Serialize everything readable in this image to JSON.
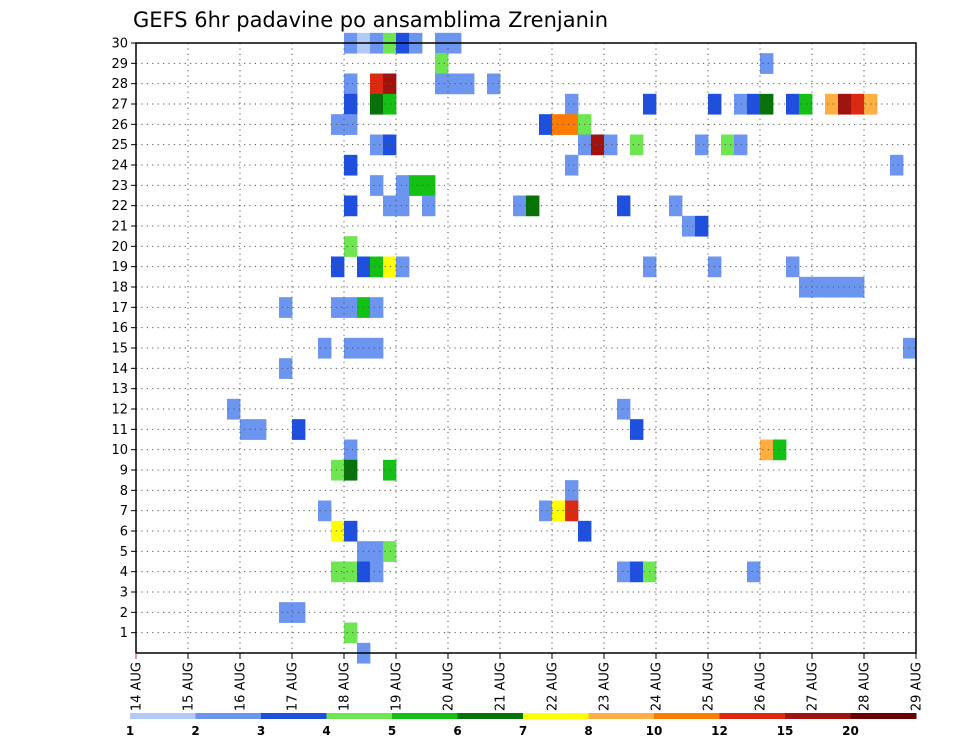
{
  "chart_data": {
    "type": "heatmap",
    "title": "GEFS 6hr padavine po ansamblima Zrenjanin",
    "xlabel": "",
    "ylabel": "",
    "x_ticks": [
      "14 AUG",
      "15 AUG",
      "16 AUG",
      "17 AUG",
      "18 AUG",
      "19 AUG",
      "20 AUG",
      "21 AUG",
      "22 AUG",
      "23 AUG",
      "24 AUG",
      "25 AUG",
      "26 AUG",
      "27 AUG",
      "28 AUG",
      "29 AUG"
    ],
    "xlim": [
      "14 AUG 00Z",
      "29 AUG 00Z"
    ],
    "time_step_hours": 6,
    "y_ticks": [
      "1",
      "2",
      "3",
      "4",
      "5",
      "6",
      "7",
      "8",
      "9",
      "10",
      "11",
      "12",
      "13",
      "14",
      "15",
      "16",
      "17",
      "18",
      "19",
      "20",
      "21",
      "22",
      "23",
      "24",
      "25",
      "26",
      "27",
      "28",
      "29",
      "30"
    ],
    "ylim": [
      0,
      30
    ],
    "grid": true,
    "colorbar": {
      "tick_labels": [
        "1",
        "2",
        "3",
        "4",
        "5",
        "6",
        "7",
        "8",
        "10",
        "12",
        "15",
        "20"
      ],
      "colors": [
        "#b3c9f7",
        "#6b95ef",
        "#1f4fde",
        "#6ee651",
        "#13c013",
        "#077207",
        "#ffff00",
        "#ffae42",
        "#ff7a00",
        "#dc2a12",
        "#a0120e",
        "#6b0000"
      ]
    },
    "cells": [
      {
        "m": 30,
        "t": [
          "18 AUG 00Z",
          "18 AUG 06Z",
          "18 AUG 12Z",
          "18 AUG 18Z",
          "19 AUG 00Z",
          "19 AUG 06Z",
          "19 AUG 18Z",
          "20 AUG 00Z"
        ],
        "c": [
          1,
          0,
          1,
          3,
          2,
          1,
          1,
          1
        ]
      },
      {
        "m": 29,
        "t": [
          "19 AUG 18Z",
          "26 AUG 00Z"
        ],
        "c": [
          3,
          1
        ]
      },
      {
        "m": 28,
        "t": [
          "18 AUG 00Z",
          "18 AUG 12Z",
          "18 AUG 18Z",
          "19 AUG 18Z",
          "20 AUG 00Z",
          "20 AUG 06Z",
          "20 AUG 18Z"
        ],
        "c": [
          1,
          9,
          10,
          1,
          1,
          1,
          1
        ]
      },
      {
        "m": 27,
        "t": [
          "18 AUG 00Z",
          "18 AUG 12Z",
          "18 AUG 18Z",
          "22 AUG 06Z",
          "23 AUG 18Z",
          "25 AUG 00Z",
          "25 AUG 12Z",
          "25 AUG 18Z",
          "26 AUG 00Z",
          "26 AUG 12Z",
          "26 AUG 18Z",
          "27 AUG 06Z",
          "27 AUG 12Z",
          "27 AUG 18Z",
          "28 AUG 00Z"
        ],
        "c": [
          2,
          5,
          4,
          1,
          2,
          2,
          1,
          2,
          5,
          2,
          4,
          7,
          10,
          9,
          7
        ]
      },
      {
        "m": 26,
        "t": [
          "17 AUG 18Z",
          "18 AUG 00Z",
          "21 AUG 18Z",
          "22 AUG 00Z",
          "22 AUG 06Z",
          "22 AUG 12Z"
        ],
        "c": [
          1,
          1,
          2,
          8,
          8,
          3
        ]
      },
      {
        "m": 25,
        "t": [
          "18 AUG 12Z",
          "18 AUG 18Z",
          "22 AUG 12Z",
          "22 AUG 18Z",
          "23 AUG 00Z",
          "23 AUG 12Z",
          "24 AUG 18Z",
          "25 AUG 06Z",
          "25 AUG 12Z"
        ],
        "c": [
          1,
          2,
          1,
          10,
          1,
          3,
          1,
          3,
          1
        ]
      },
      {
        "m": 24,
        "t": [
          "18 AUG 00Z",
          "22 AUG 06Z",
          "28 AUG 12Z"
        ],
        "c": [
          2,
          1,
          1
        ]
      },
      {
        "m": 23,
        "t": [
          "18 AUG 12Z",
          "19 AUG 00Z",
          "19 AUG 06Z",
          "19 AUG 12Z"
        ],
        "c": [
          1,
          1,
          4,
          4
        ]
      },
      {
        "m": 22,
        "t": [
          "18 AUG 00Z",
          "18 AUG 18Z",
          "19 AUG 00Z",
          "19 AUG 12Z",
          "21 AUG 06Z",
          "21 AUG 12Z",
          "23 AUG 06Z",
          "24 AUG 06Z"
        ],
        "c": [
          2,
          1,
          1,
          1,
          1,
          5,
          2,
          1
        ]
      },
      {
        "m": 21,
        "t": [
          "24 AUG 12Z",
          "24 AUG 18Z"
        ],
        "c": [
          1,
          2
        ]
      },
      {
        "m": 20,
        "t": [
          "18 AUG 00Z"
        ],
        "c": [
          3
        ]
      },
      {
        "m": 19,
        "t": [
          "17 AUG 18Z",
          "18 AUG 06Z",
          "18 AUG 12Z",
          "18 AUG 18Z",
          "19 AUG 00Z",
          "23 AUG 18Z",
          "25 AUG 00Z",
          "26 AUG 12Z"
        ],
        "c": [
          2,
          2,
          4,
          6,
          1,
          1,
          1,
          1
        ]
      },
      {
        "m": 18,
        "t": [
          "26 AUG 18Z",
          "27 AUG 00Z",
          "27 AUG 06Z",
          "27 AUG 12Z",
          "27 AUG 18Z"
        ],
        "c": [
          1,
          1,
          1,
          1,
          1
        ]
      },
      {
        "m": 17,
        "t": [
          "16 AUG 18Z",
          "17 AUG 18Z",
          "18 AUG 00Z",
          "18 AUG 06Z",
          "18 AUG 12Z"
        ],
        "c": [
          1,
          1,
          1,
          4,
          1
        ]
      },
      {
        "m": 15,
        "t": [
          "17 AUG 12Z",
          "18 AUG 00Z",
          "18 AUG 06Z",
          "18 AUG 12Z",
          "28 AUG 18Z"
        ],
        "c": [
          1,
          1,
          1,
          1,
          1
        ]
      },
      {
        "m": 14,
        "t": [
          "16 AUG 18Z"
        ],
        "c": [
          1
        ]
      },
      {
        "m": 12,
        "t": [
          "15 AUG 18Z",
          "23 AUG 06Z"
        ],
        "c": [
          1,
          1
        ]
      },
      {
        "m": 11,
        "t": [
          "16 AUG 00Z",
          "16 AUG 06Z",
          "17 AUG 00Z",
          "23 AUG 12Z"
        ],
        "c": [
          1,
          1,
          2,
          2
        ]
      },
      {
        "m": 10,
        "t": [
          "18 AUG 00Z",
          "26 AUG 00Z",
          "26 AUG 06Z"
        ],
        "c": [
          1,
          7,
          4
        ]
      },
      {
        "m": 9,
        "t": [
          "17 AUG 18Z",
          "18 AUG 00Z",
          "18 AUG 18Z"
        ],
        "c": [
          3,
          5,
          4
        ]
      },
      {
        "m": 8,
        "t": [
          "22 AUG 06Z"
        ],
        "c": [
          1
        ]
      },
      {
        "m": 7,
        "t": [
          "17 AUG 12Z",
          "21 AUG 18Z",
          "22 AUG 00Z",
          "22 AUG 06Z"
        ],
        "c": [
          1,
          1,
          6,
          9
        ]
      },
      {
        "m": 6,
        "t": [
          "17 AUG 18Z",
          "18 AUG 00Z",
          "22 AUG 12Z"
        ],
        "c": [
          6,
          2,
          2
        ]
      },
      {
        "m": 5,
        "t": [
          "18 AUG 06Z",
          "18 AUG 12Z",
          "18 AUG 18Z"
        ],
        "c": [
          1,
          1,
          3
        ]
      },
      {
        "m": 4,
        "t": [
          "17 AUG 18Z",
          "18 AUG 00Z",
          "18 AUG 06Z",
          "18 AUG 12Z",
          "23 AUG 06Z",
          "23 AUG 12Z",
          "23 AUG 18Z",
          "25 AUG 18Z"
        ],
        "c": [
          3,
          3,
          2,
          1,
          1,
          2,
          3,
          1
        ]
      },
      {
        "m": 2,
        "t": [
          "16 AUG 18Z",
          "17 AUG 00Z"
        ],
        "c": [
          1,
          1
        ]
      },
      {
        "m": 1,
        "t": [
          "18 AUG 00Z"
        ],
        "c": [
          3
        ]
      },
      {
        "m": 0,
        "t": [
          "18 AUG 06Z"
        ],
        "c": [
          1
        ]
      }
    ]
  }
}
